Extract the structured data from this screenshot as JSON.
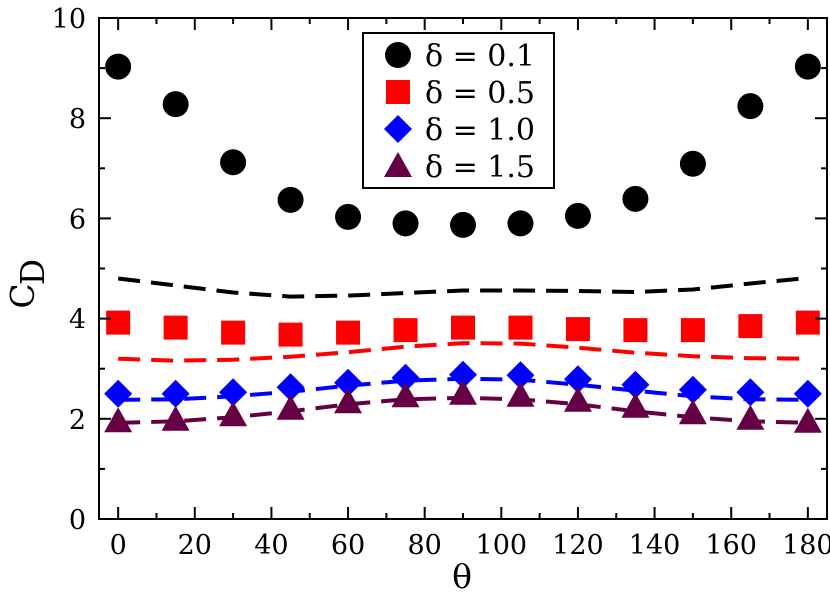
{
  "chart_data": {
    "type": "scatter",
    "title": "",
    "xlabel": "θ",
    "ylabel_main": "C",
    "ylabel_sub": "D",
    "xlim": [
      -5,
      185
    ],
    "ylim": [
      0,
      10
    ],
    "xticks": [
      0,
      20,
      40,
      60,
      80,
      100,
      120,
      140,
      160,
      180
    ],
    "yticks": [
      0,
      2,
      4,
      6,
      8,
      10
    ],
    "x": [
      0,
      15,
      30,
      45,
      60,
      75,
      90,
      105,
      120,
      135,
      150,
      165,
      180
    ],
    "legend_position": "top-center",
    "series": [
      {
        "name": "δ = 0.1",
        "marker": "circle",
        "color": "#000000",
        "values": [
          9.03,
          8.28,
          7.12,
          6.37,
          6.03,
          5.9,
          5.87,
          5.9,
          6.05,
          6.39,
          7.09,
          8.24,
          9.03
        ],
        "dashed_values": [
          4.8,
          4.66,
          4.52,
          4.44,
          4.46,
          4.51,
          4.56,
          4.56,
          4.55,
          4.53,
          4.58,
          4.7,
          4.81
        ]
      },
      {
        "name": "δ = 0.5",
        "marker": "square",
        "color": "#ff0000",
        "values": [
          3.92,
          3.82,
          3.72,
          3.68,
          3.72,
          3.77,
          3.82,
          3.82,
          3.79,
          3.77,
          3.77,
          3.85,
          3.92
        ],
        "dashed_values": [
          3.2,
          3.16,
          3.18,
          3.24,
          3.33,
          3.44,
          3.51,
          3.5,
          3.42,
          3.32,
          3.25,
          3.21,
          3.2
        ]
      },
      {
        "name": "δ = 1.0",
        "marker": "diamond",
        "color": "#0000ff",
        "values": [
          2.5,
          2.5,
          2.53,
          2.63,
          2.72,
          2.82,
          2.88,
          2.87,
          2.79,
          2.68,
          2.58,
          2.53,
          2.5
        ],
        "dashed_values": [
          2.38,
          2.39,
          2.45,
          2.54,
          2.66,
          2.76,
          2.8,
          2.78,
          2.68,
          2.56,
          2.45,
          2.39,
          2.38
        ]
      },
      {
        "name": "δ = 1.5",
        "marker": "triangle",
        "color": "#660044",
        "values": [
          1.95,
          1.98,
          2.07,
          2.2,
          2.33,
          2.45,
          2.5,
          2.46,
          2.36,
          2.24,
          2.11,
          2.0,
          1.94
        ],
        "dashed_values": [
          1.92,
          1.95,
          2.03,
          2.15,
          2.29,
          2.39,
          2.42,
          2.39,
          2.29,
          2.15,
          2.03,
          1.95,
          1.92
        ]
      }
    ]
  }
}
